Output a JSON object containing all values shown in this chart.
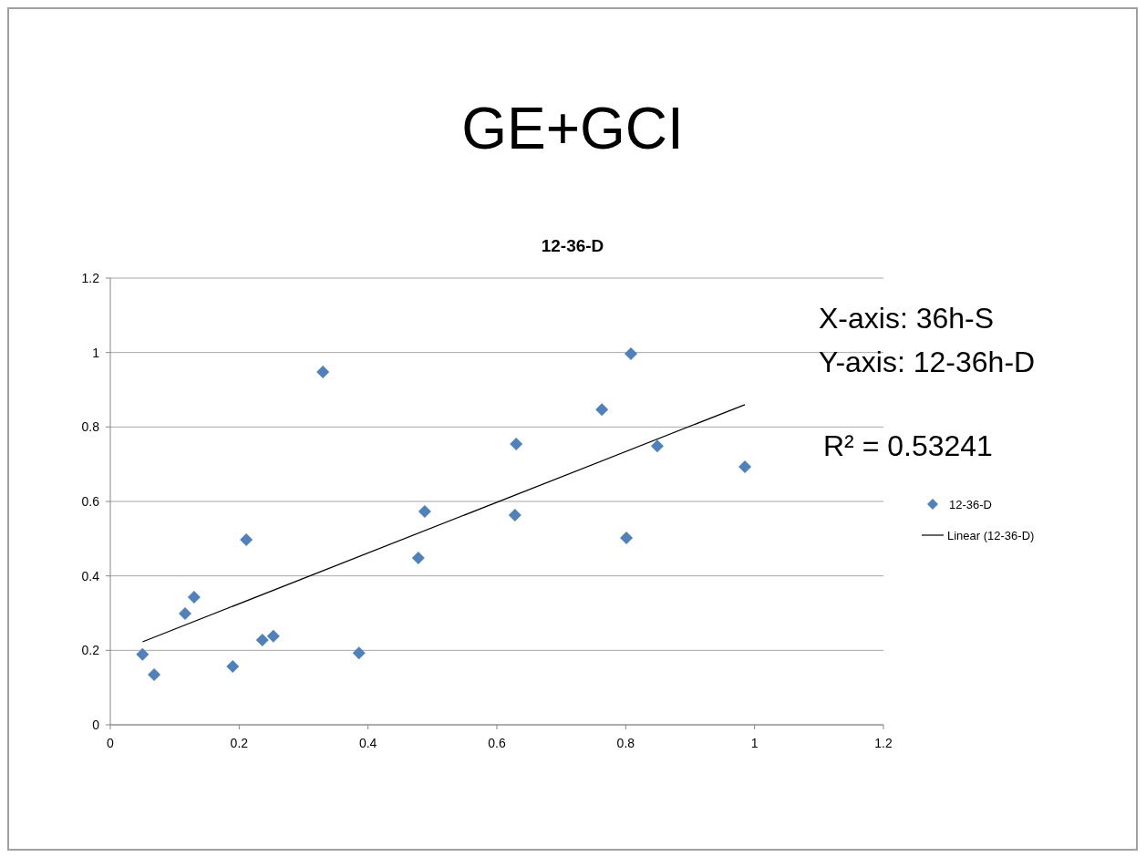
{
  "chart_data": {
    "type": "scatter",
    "title": "GE+GCI",
    "subtitle": "12-36-D",
    "annotations": [
      "X-axis: 36h-S",
      "Y-axis: 12-36h-D",
      "R² = 0.53241"
    ],
    "series": [
      {
        "name": "12-36-D",
        "color": "#4f81bd",
        "marker": "diamond",
        "x": [
          0.05,
          0.068,
          0.116,
          0.13,
          0.19,
          0.211,
          0.236,
          0.253,
          0.33,
          0.386,
          0.478,
          0.488,
          0.63,
          0.628,
          0.763,
          0.801,
          0.808,
          0.849,
          0.985
        ],
        "values": [
          0.189,
          0.135,
          0.299,
          0.343,
          0.157,
          0.497,
          0.228,
          0.238,
          0.948,
          0.193,
          0.448,
          0.573,
          0.754,
          0.563,
          0.847,
          0.502,
          0.997,
          0.749,
          0.693
        ]
      },
      {
        "name": "Linear (12-36-D)",
        "type": "line",
        "color": "#000000",
        "marker": "none",
        "x": [
          0.05,
          0.985
        ],
        "values": [
          0.223,
          0.86
        ]
      }
    ],
    "xlim": [
      0,
      1.2
    ],
    "xticks": [
      0,
      0.2,
      0.4,
      0.6,
      0.8,
      1,
      1.2
    ],
    "ylim": [
      0,
      1.2
    ],
    "yticks": [
      0,
      0.2,
      0.4,
      0.6,
      0.8,
      1,
      1.2
    ],
    "grid": "y",
    "legend": "right"
  }
}
